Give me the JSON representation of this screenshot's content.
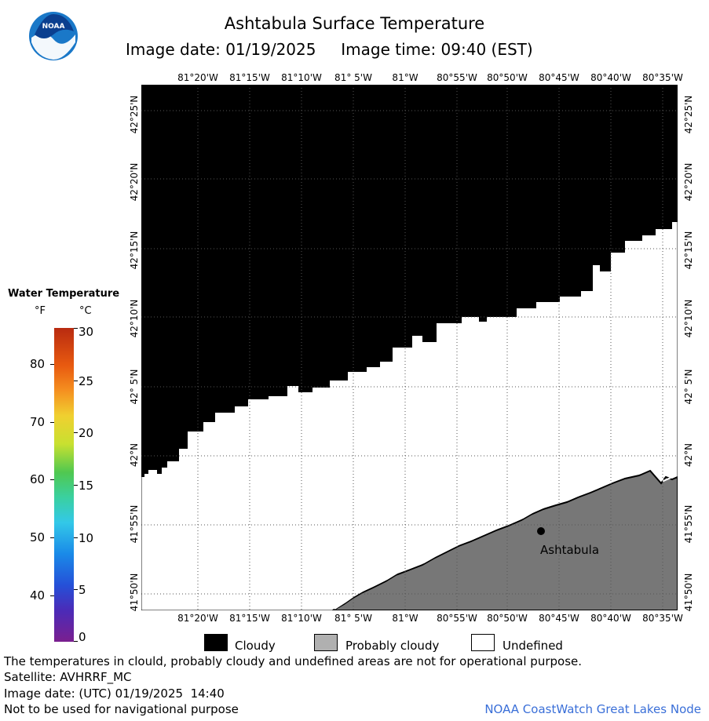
{
  "header": {
    "title": "Ashtabula Surface Temperature",
    "image_date": "Image date: 01/19/2025",
    "image_time": "Image time: 09:40 (EST)"
  },
  "logo": {
    "text": "NOAA"
  },
  "map": {
    "longitude_labels": [
      "81°20'W",
      "81°15'W",
      "81°10'W",
      "81° 5'W",
      "81°W",
      "80°55'W",
      "80°50'W",
      "80°45'W",
      "80°40'W",
      "80°35'W"
    ],
    "latitude_labels": [
      "42°25'N",
      "42°20'N",
      "42°15'N",
      "42°10'N",
      "42° 5'N",
      "42°N",
      "41°55'N",
      "41°50'N"
    ],
    "city": {
      "name": "Ashtabula"
    },
    "colors": {
      "cloudy": "#000000",
      "land": "#777777",
      "undefined": "#ffffff"
    }
  },
  "legend": {
    "title": "Water Temperature",
    "unit_f": "°F",
    "unit_c": "°C",
    "f_ticks": [
      "80",
      "70",
      "60",
      "50",
      "40"
    ],
    "c_ticks": [
      "30",
      "25",
      "20",
      "15",
      "10",
      "5",
      "0"
    ]
  },
  "key": {
    "cloudy": "Cloudy",
    "probably_cloudy": "Probably cloudy",
    "undefined": "Undefined",
    "colors": {
      "cloudy": "#000000",
      "probably_cloudy": "#b0b0b0",
      "undefined": "#ffffff"
    }
  },
  "footer": {
    "disclaimer": "The temperatures in clould, probably cloudy and undefined areas are not for operational purpose.",
    "satellite": "Satellite: AVHRRF_MC",
    "utc_date": "Image date: (UTC) 01/19/2025  14:40",
    "nav_warning": "Not to be used for navigational purpose",
    "node": "NOAA CoastWatch Great Lakes Node"
  }
}
